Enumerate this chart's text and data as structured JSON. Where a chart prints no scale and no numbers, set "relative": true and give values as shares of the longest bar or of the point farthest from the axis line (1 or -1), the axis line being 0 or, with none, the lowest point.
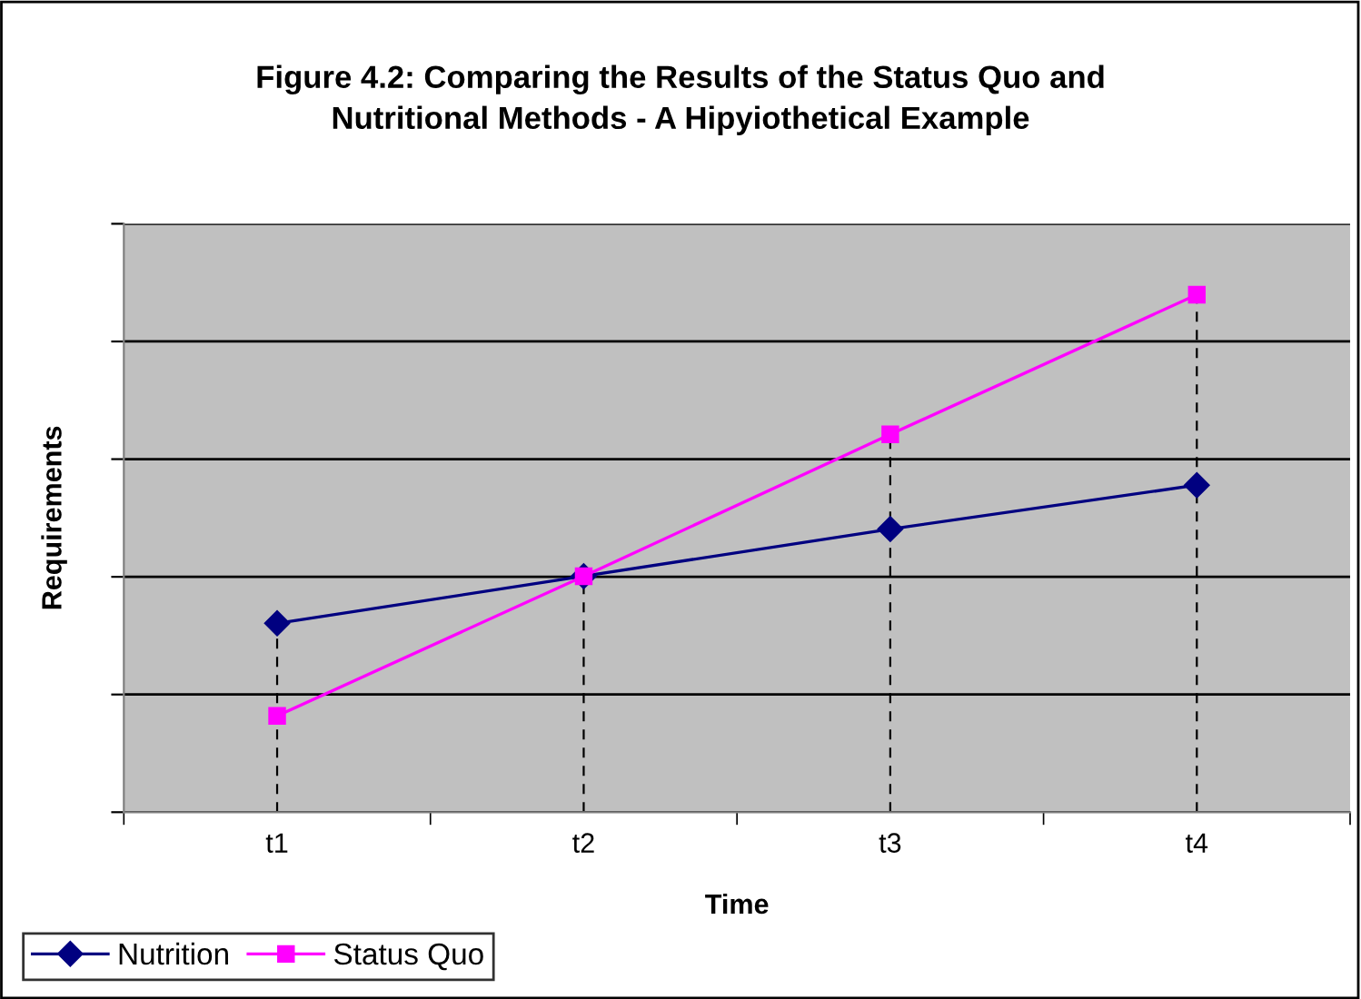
{
  "chart_data": {
    "type": "line",
    "title": "Figure 4.2: Comparing the Results of the Status Quo and\nNutritional Methods - A Hipyiothetical Example",
    "xlabel": "Time",
    "ylabel": "Requirements",
    "categories": [
      "t1",
      "t2",
      "t3",
      "t4"
    ],
    "relative": true,
    "grid": "y",
    "ref_lines": [
      {
        "axis": "x",
        "value": "t1",
        "color": "#000000",
        "line_style": "dashed"
      },
      {
        "axis": "x",
        "value": "t2",
        "color": "#000000",
        "line_style": "dashed"
      },
      {
        "axis": "x",
        "value": "t3",
        "color": "#000000",
        "line_style": "dashed"
      },
      {
        "axis": "x",
        "value": "t4",
        "color": "#000000",
        "line_style": "dashed"
      }
    ],
    "legend": "bottom left",
    "series": [
      {
        "name": "Nutrition",
        "color": "#000080",
        "marker": "diamond",
        "values": [
          0.365,
          0.456,
          0.547,
          0.632
        ]
      },
      {
        "name": "Status Quo",
        "color": "#ff00ff",
        "marker": "square",
        "values": [
          0.186,
          0.456,
          0.73,
          1
        ]
      }
    ]
  }
}
